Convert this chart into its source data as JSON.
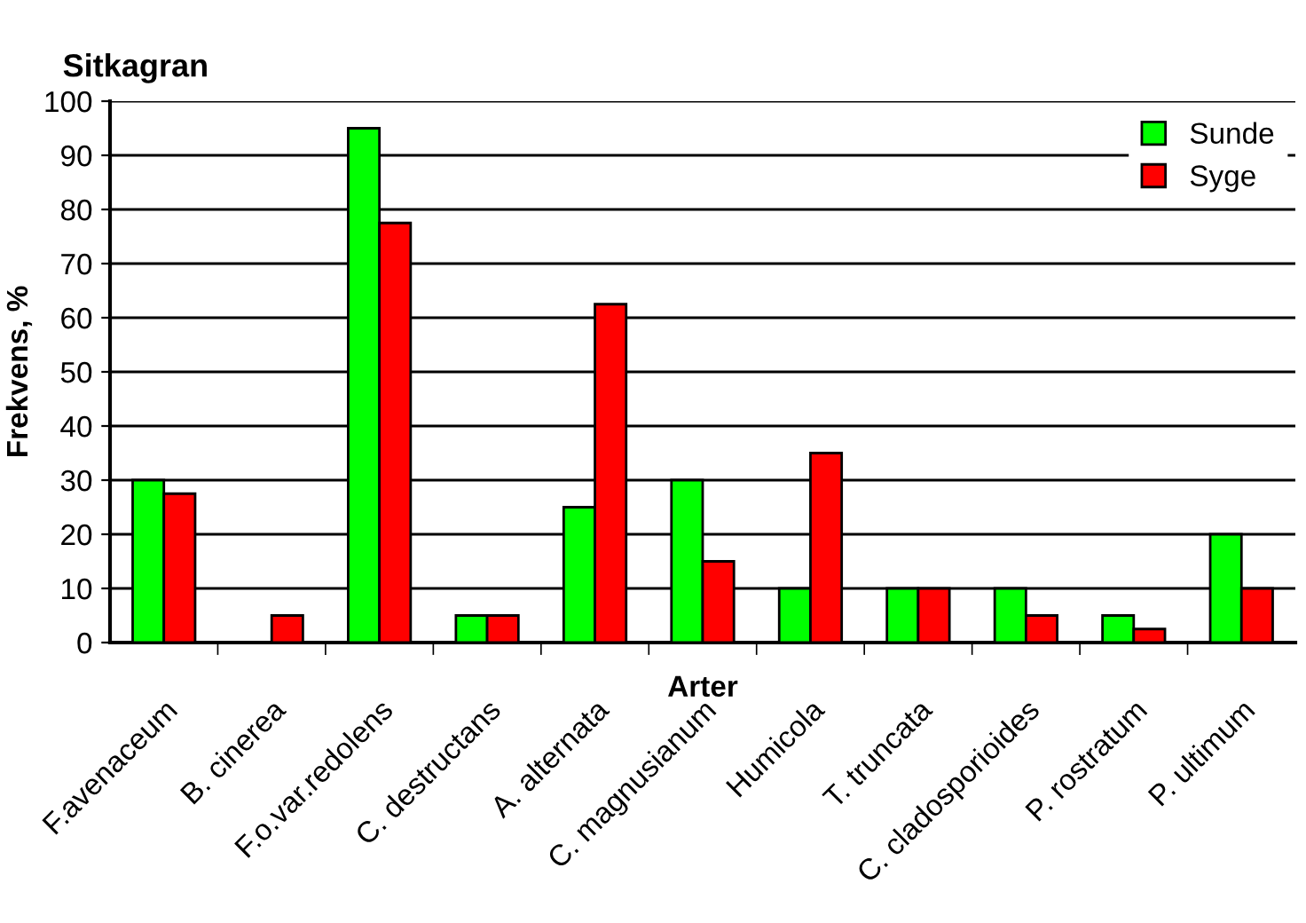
{
  "chart_data": {
    "type": "bar",
    "title": "Sitkagran",
    "xlabel": "Arter",
    "ylabel": "Frekvens, %",
    "categories": [
      "F.avenaceum",
      "B. cinerea",
      "F.o.var.redolens",
      "C. destructans",
      "A. alternata",
      "C. magnusianum",
      "Humicola",
      "T. truncata",
      "C. cladosporioides",
      "P. rostratum",
      "P. ultimum"
    ],
    "series": [
      {
        "name": "Sunde",
        "color": "#00ff00",
        "values": [
          30,
          0,
          95,
          5,
          25,
          30,
          10,
          10,
          10,
          5,
          20
        ]
      },
      {
        "name": "Syge",
        "color": "#ff0000",
        "values": [
          27.5,
          5,
          77.5,
          5,
          62.5,
          15,
          35,
          10,
          5,
          2.5,
          10
        ]
      }
    ],
    "ylim": [
      0,
      100
    ],
    "yticks": [
      0,
      10,
      20,
      30,
      40,
      50,
      60,
      70,
      80,
      90,
      100
    ],
    "grid": "y",
    "legend": "top right"
  }
}
